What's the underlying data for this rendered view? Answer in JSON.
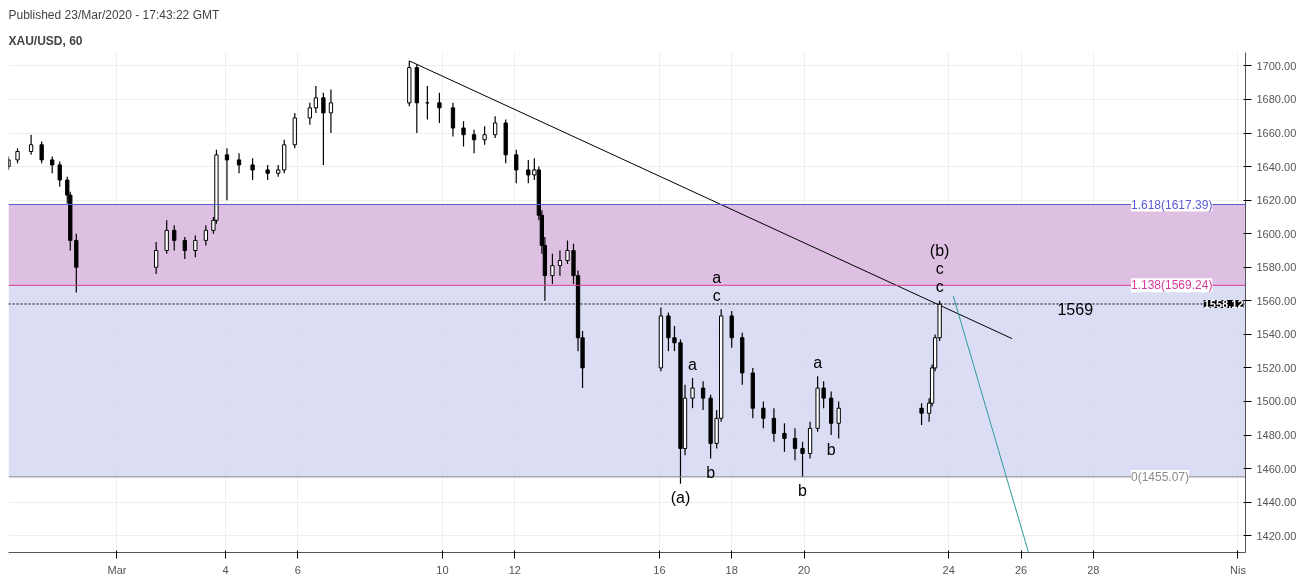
{
  "chart_data": {
    "type": "candlestick",
    "title": "XAU/USD, 60",
    "annotations": [
      "Published 23/Mar/2020 - 17:43:22 GMT",
      {
        "text": "(a)",
        "x": "2020-03-16T14:00",
        "y": 1451
      },
      {
        "text": "a",
        "x": "2020-03-16T22:00",
        "y": 1514
      },
      {
        "text": "b",
        "x": "2020-03-17T10:00",
        "y": 1466
      },
      {
        "text": "c",
        "x": "2020-03-17T14:00",
        "y": 1555
      },
      {
        "text": "a",
        "x": "2020-03-17T14:00",
        "y": 1555
      },
      {
        "text": "b",
        "x": "2020-03-19T23:00",
        "y": 1455
      },
      {
        "text": "a",
        "x": "2020-03-20T09:00",
        "y": 1515
      },
      {
        "text": "b",
        "x": "2020-03-20T18:00",
        "y": 1480
      },
      {
        "text": "c",
        "x": "2020-03-23T18:00",
        "y": 1560
      },
      {
        "text": "c",
        "x": "2020-03-23T18:00",
        "y": 1560
      },
      {
        "text": "(b)",
        "x": "2020-03-23T18:00",
        "y": 1560
      },
      {
        "text": "1569",
        "x": "2020-03-27T12:00",
        "y": 1569.24
      }
    ],
    "color": "#000000",
    "x": [
      "2020-02-27T00:00",
      "2020-02-27T06:00",
      "2020-02-27T15:00",
      "2020-02-27T22:00",
      "2020-02-28T05:00",
      "2020-02-28T10:00",
      "2020-02-28T15:00",
      "2020-02-28T17:00",
      "2020-02-28T21:00",
      "2020-03-02T02:00",
      "2020-03-02T09:00",
      "2020-03-02T14:00",
      "2020-03-02T21:00",
      "2020-03-03T04:00",
      "2020-03-03T11:00",
      "2020-03-03T16:00",
      "2020-03-03T18:00",
      "2020-03-04T01:00",
      "2020-03-04T09:00",
      "2020-03-04T18:00",
      "2020-03-05T04:00",
      "2020-03-05T11:00",
      "2020-03-05T15:00",
      "2020-03-05T22:00",
      "2020-03-06T08:00",
      "2020-03-06T12:00",
      "2020-03-06T17:00",
      "2020-03-06T22:00",
      "2020-03-09T02:00",
      "2020-03-09T07:00",
      "2020-03-09T14:00",
      "2020-03-09T22:00",
      "2020-03-10T07:00",
      "2020-03-10T14:00",
      "2020-03-10T21:00",
      "2020-03-11T04:00",
      "2020-03-11T11:00",
      "2020-03-11T18:00",
      "2020-03-12T01:00",
      "2020-03-12T09:00",
      "2020-03-12T13:00",
      "2020-03-12T16:00",
      "2020-03-12T18:00",
      "2020-03-12T20:00",
      "2020-03-13T01:00",
      "2020-03-13T06:00",
      "2020-03-13T11:00",
      "2020-03-13T15:00",
      "2020-03-13T18:00",
      "2020-03-13T21:00",
      "2020-03-16T01:00",
      "2020-03-16T06:00",
      "2020-03-16T10:00",
      "2020-03-16T14:00",
      "2020-03-16T17:00",
      "2020-03-16T22:00",
      "2020-03-17T05:00",
      "2020-03-17T10:00",
      "2020-03-17T14:00",
      "2020-03-17T17:00",
      "2020-03-18T00:00",
      "2020-03-18T07:00",
      "2020-03-18T14:00",
      "2020-03-18T21:00",
      "2020-03-19T04:00",
      "2020-03-19T11:00",
      "2020-03-19T18:00",
      "2020-03-19T23:00",
      "2020-03-20T04:00",
      "2020-03-20T09:00",
      "2020-03-20T13:00",
      "2020-03-20T18:00",
      "2020-03-20T23:00",
      "2020-03-23T06:00",
      "2020-03-23T11:00",
      "2020-03-23T13:00",
      "2020-03-23T15:00",
      "2020-03-23T18:00"
    ],
    "ohlc": [
      [
        1640,
        1646,
        1638,
        1644
      ],
      [
        1644,
        1651,
        1642,
        1649
      ],
      [
        1649,
        1659,
        1647,
        1653
      ],
      [
        1653,
        1655,
        1642,
        1644
      ],
      [
        1644,
        1646,
        1636,
        1641
      ],
      [
        1641,
        1643,
        1628,
        1632
      ],
      [
        1632,
        1634,
        1618,
        1623
      ],
      [
        1623,
        1625,
        1590,
        1596
      ],
      [
        1596,
        1600,
        1565,
        1580
      ],
      [
        1580,
        1595,
        1576,
        1590
      ],
      [
        1590,
        1608,
        1588,
        1602
      ],
      [
        1602,
        1605,
        1590,
        1596
      ],
      [
        1596,
        1598,
        1585,
        1590
      ],
      [
        1590,
        1599,
        1586,
        1596
      ],
      [
        1596,
        1605,
        1593,
        1602
      ],
      [
        1602,
        1610,
        1600,
        1608
      ],
      [
        1608,
        1650,
        1606,
        1647
      ],
      [
        1647,
        1651,
        1620,
        1644
      ],
      [
        1644,
        1648,
        1636,
        1641
      ],
      [
        1641,
        1645,
        1632,
        1638
      ],
      [
        1638,
        1641,
        1632,
        1636
      ],
      [
        1636,
        1641,
        1634,
        1638
      ],
      [
        1638,
        1656,
        1636,
        1653
      ],
      [
        1653,
        1672,
        1651,
        1669
      ],
      [
        1669,
        1678,
        1665,
        1675
      ],
      [
        1675,
        1688,
        1672,
        1681
      ],
      [
        1681,
        1684,
        1641,
        1672
      ],
      [
        1672,
        1686,
        1660,
        1678
      ],
      [
        1678,
        1703,
        1676,
        1699
      ],
      [
        1699,
        1701,
        1660,
        1678
      ],
      [
        1678,
        1688,
        1668,
        1678
      ],
      [
        1678,
        1684,
        1666,
        1675
      ],
      [
        1675,
        1678,
        1658,
        1663
      ],
      [
        1663,
        1667,
        1652,
        1659
      ],
      [
        1659,
        1662,
        1648,
        1656
      ],
      [
        1656,
        1664,
        1653,
        1659
      ],
      [
        1659,
        1670,
        1657,
        1666
      ],
      [
        1666,
        1668,
        1642,
        1647
      ],
      [
        1647,
        1650,
        1630,
        1638
      ],
      [
        1638,
        1644,
        1630,
        1635
      ],
      [
        1635,
        1645,
        1632,
        1638
      ],
      [
        1638,
        1640,
        1608,
        1611
      ],
      [
        1611,
        1614,
        1588,
        1593
      ],
      [
        1593,
        1598,
        1560,
        1575
      ],
      [
        1575,
        1588,
        1570,
        1581
      ],
      [
        1581,
        1590,
        1575,
        1584
      ],
      [
        1584,
        1596,
        1582,
        1590
      ],
      [
        1590,
        1594,
        1570,
        1575
      ],
      [
        1575,
        1578,
        1530,
        1538
      ],
      [
        1538,
        1542,
        1508,
        1520
      ],
      [
        1520,
        1556,
        1518,
        1551
      ],
      [
        1551,
        1553,
        1530,
        1538
      ],
      [
        1538,
        1545,
        1530,
        1535
      ],
      [
        1535,
        1537,
        1451,
        1472
      ],
      [
        1472,
        1510,
        1468,
        1502
      ],
      [
        1502,
        1514,
        1496,
        1508
      ],
      [
        1508,
        1512,
        1495,
        1502
      ],
      [
        1502,
        1504,
        1466,
        1475
      ],
      [
        1475,
        1495,
        1472,
        1490
      ],
      [
        1490,
        1555,
        1488,
        1551
      ],
      [
        1551,
        1554,
        1532,
        1538
      ],
      [
        1538,
        1541,
        1510,
        1517
      ],
      [
        1517,
        1520,
        1490,
        1496
      ],
      [
        1496,
        1500,
        1484,
        1490
      ],
      [
        1490,
        1496,
        1476,
        1481
      ],
      [
        1481,
        1487,
        1470,
        1478
      ],
      [
        1478,
        1484,
        1465,
        1472
      ],
      [
        1472,
        1476,
        1455,
        1469
      ],
      [
        1469,
        1488,
        1466,
        1484
      ],
      [
        1484,
        1515,
        1482,
        1508
      ],
      [
        1508,
        1512,
        1496,
        1502
      ],
      [
        1502,
        1506,
        1480,
        1487
      ],
      [
        1487,
        1500,
        1478,
        1496
      ],
      [
        1496,
        1499,
        1486,
        1493
      ],
      [
        1493,
        1502,
        1488,
        1499
      ],
      [
        1499,
        1522,
        1497,
        1520
      ],
      [
        1520,
        1540,
        1518,
        1538
      ],
      [
        1538,
        1560,
        1536,
        1558
      ]
    ],
    "series": [
      {
        "type": "line",
        "color": "#000000",
        "x": [
          "2020-03-09T02:00",
          "2020-03-25T18:00"
        ],
        "values": [
          1703,
          1537.5
        ]
      },
      {
        "type": "line",
        "color": "#2a9d9a",
        "x": [
          "2020-03-24T03:00",
          "2020-03-26T05:00"
        ],
        "values": [
          1563,
          1410
        ]
      }
    ],
    "bands": [
      {
        "axis": "y",
        "from": 1455.07,
        "to": 1569.24,
        "color": "#d2d4f2"
      },
      {
        "axis": "y",
        "from": 1569.24,
        "to": 1617.39,
        "color": "#d6b0dc"
      }
    ],
    "ref_lines": [
      {
        "axis": "y",
        "value": 1617.39,
        "label": "1.618(1617.39)",
        "color": "#5b5bd6"
      },
      {
        "axis": "y",
        "value": 1569.24,
        "label": "1.138(1569.24)",
        "color": "#d63c9a"
      },
      {
        "axis": "y",
        "value": 1455.07,
        "label": "0(1455.07)",
        "color": "#8a8a8a"
      },
      {
        "axis": "y",
        "value": 1558.12,
        "label": "1558.12",
        "color": "#000000",
        "line_style": "dotted"
      }
    ],
    "xlim": [
      "2020-02-27T00:00",
      "2020-04-01T05:00"
    ],
    "ylim": [
      1410,
      1708
    ],
    "xticks": [
      {
        "value": "2020-03-01",
        "label": "Mar"
      },
      {
        "value": "2020-03-04",
        "label": "4"
      },
      {
        "value": "2020-03-06",
        "label": "6"
      },
      {
        "value": "2020-03-10",
        "label": "10"
      },
      {
        "value": "2020-03-12",
        "label": "12"
      },
      {
        "value": "2020-03-16",
        "label": "16"
      },
      {
        "value": "2020-03-18",
        "label": "18"
      },
      {
        "value": "2020-03-20",
        "label": "20"
      },
      {
        "value": "2020-03-24",
        "label": "24"
      },
      {
        "value": "2020-03-26",
        "label": "26"
      },
      {
        "value": "2020-03-28",
        "label": "28"
      },
      {
        "value": "2020-04-01",
        "label": "Nis"
      }
    ],
    "yticks": [
      {
        "value": 1420,
        "label": "1420.00"
      },
      {
        "value": 1440,
        "label": "1440.00"
      },
      {
        "value": 1460,
        "label": "1460.00"
      },
      {
        "value": 1480,
        "label": "1480.00"
      },
      {
        "value": 1500,
        "label": "1500.00"
      },
      {
        "value": 1520,
        "label": "1520.00"
      },
      {
        "value": 1540,
        "label": "1540.00"
      },
      {
        "value": 1560,
        "label": "1560.00"
      },
      {
        "value": 1580,
        "label": "1580.00"
      },
      {
        "value": 1600,
        "label": "1600.00"
      },
      {
        "value": 1620,
        "label": "1620.00"
      },
      {
        "value": 1640,
        "label": "1640.00"
      },
      {
        "value": 1660,
        "label": "1660.00"
      },
      {
        "value": 1680,
        "label": "1680.00"
      },
      {
        "value": 1700,
        "label": "1700.00"
      }
    ],
    "grid": true
  }
}
